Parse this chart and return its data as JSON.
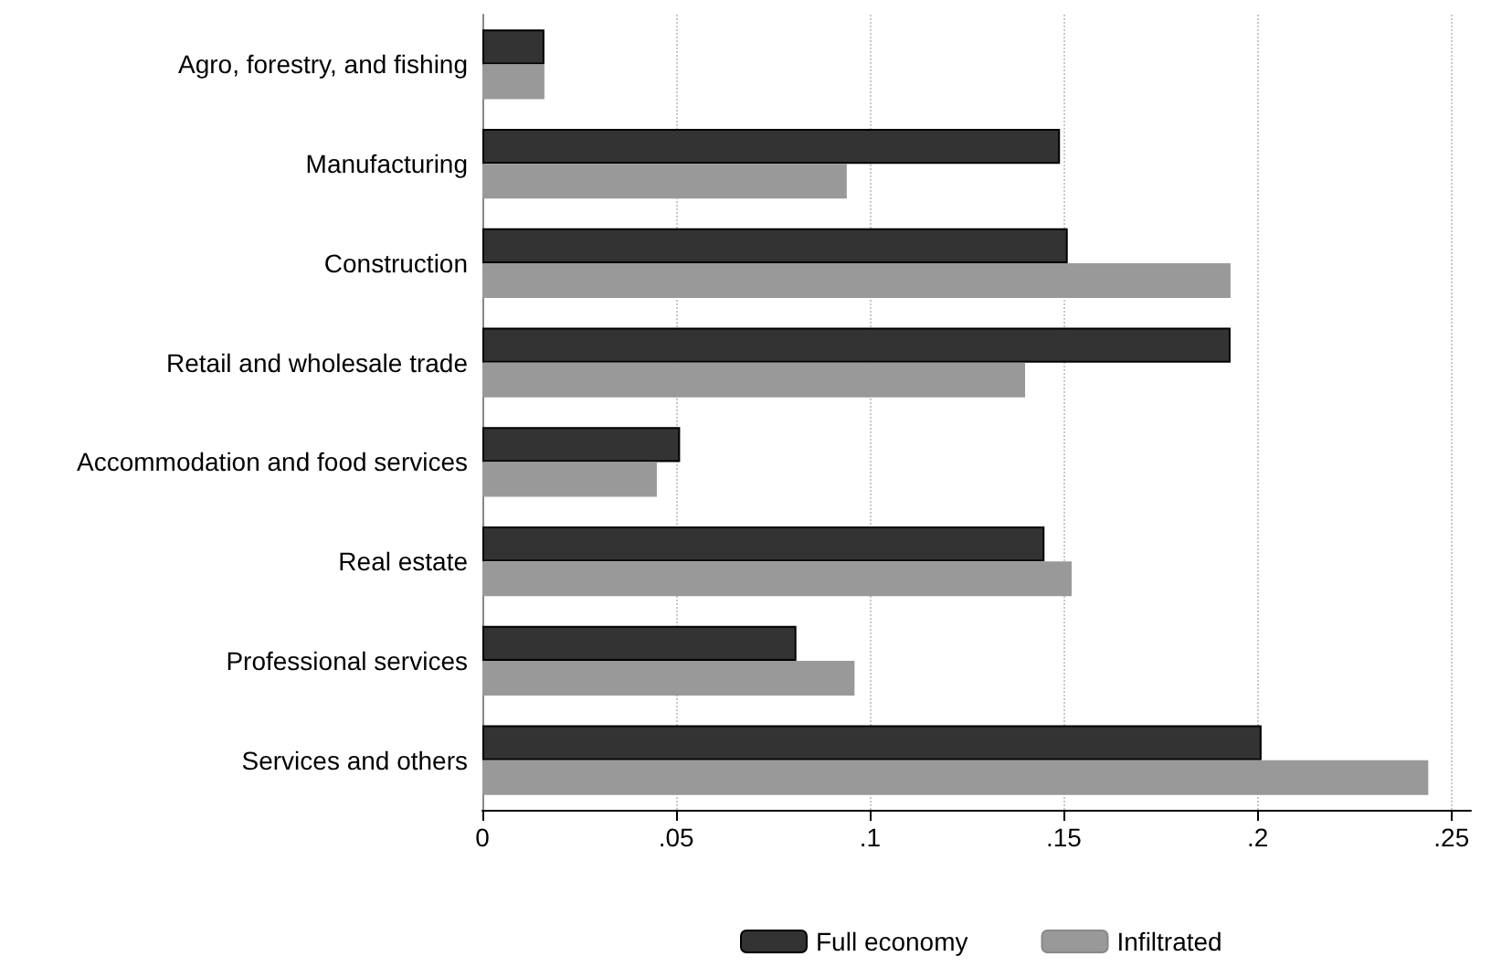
{
  "chart_data": {
    "type": "bar",
    "orientation": "horizontal",
    "categories": [
      "Agro, forestry, and fishing",
      "Manufacturing",
      "Construction",
      "Retail and wholesale trade",
      "Accommodation and food services",
      "Real estate",
      "Professional services",
      "Services and others"
    ],
    "series": [
      {
        "name": "Full economy",
        "color": "#333333",
        "values": [
          0.016,
          0.149,
          0.151,
          0.193,
          0.051,
          0.145,
          0.081,
          0.201
        ]
      },
      {
        "name": "Infiltrated",
        "color": "#999999",
        "values": [
          0.016,
          0.094,
          0.193,
          0.14,
          0.045,
          0.152,
          0.096,
          0.244
        ]
      }
    ],
    "xlim": [
      0,
      0.255
    ],
    "xticks": [
      0,
      {
        "value": 0.05,
        "label": ".05"
      },
      {
        "value": 0.1,
        "label": ".1"
      },
      {
        "value": 0.15,
        "label": ".15"
      },
      {
        "value": 0.2,
        "label": ".2"
      },
      {
        "value": 0.25,
        "label": ".25"
      }
    ],
    "grid": "x",
    "legend": "bottom"
  }
}
